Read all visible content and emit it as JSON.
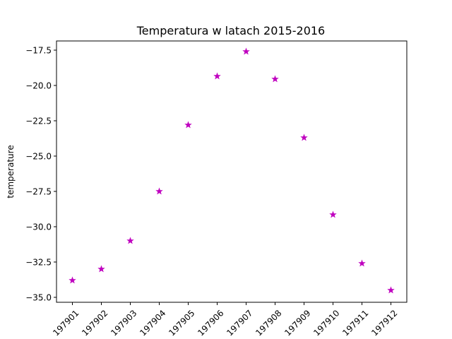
{
  "chart_data": {
    "type": "scatter",
    "title": "Temperatura w latach 2015-2016",
    "xlabel": "",
    "ylabel": "temperature",
    "categories": [
      "197901",
      "197902",
      "197903",
      "197904",
      "197905",
      "197906",
      "197907",
      "197908",
      "197909",
      "197910",
      "197911",
      "197912"
    ],
    "series": [
      {
        "values": [
          -33.8,
          -33.0,
          -31.0,
          -27.5,
          -22.8,
          -19.35,
          -17.6,
          -19.55,
          -23.7,
          -29.15,
          -32.6,
          -34.5
        ],
        "color": "#bf00bf",
        "marker": "star"
      }
    ],
    "ylim": [
      -35.35,
      -16.85
    ],
    "yticks": [
      -35.0,
      -32.5,
      -30.0,
      -27.5,
      -25.0,
      -22.5,
      -20.0,
      -17.5
    ],
    "ytick_labels": [
      "−35.0",
      "−32.5",
      "−30.0",
      "−27.5",
      "−25.0",
      "−22.5",
      "−20.0",
      "−17.5"
    ],
    "grid": false,
    "xtick_rotation": "45deg"
  }
}
